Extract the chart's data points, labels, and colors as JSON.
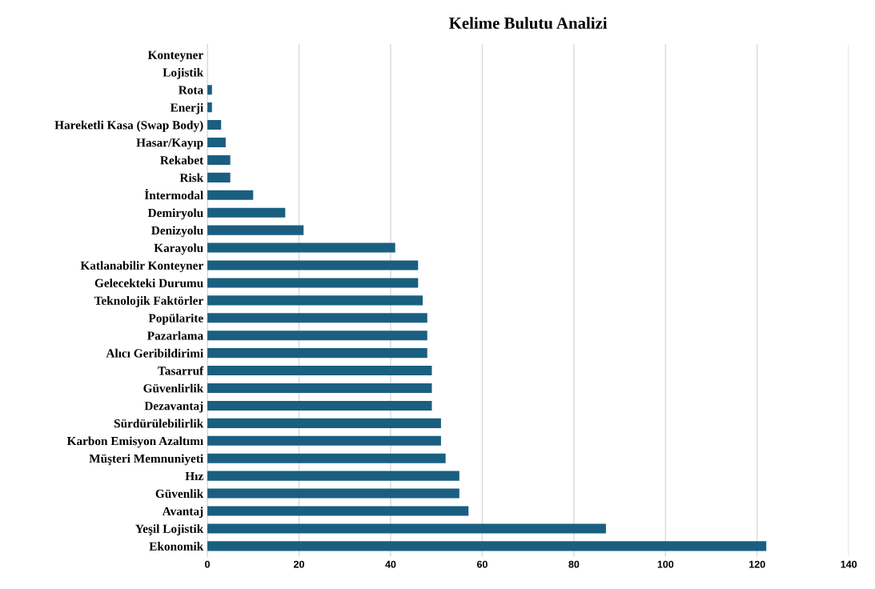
{
  "chart_data": {
    "type": "bar",
    "orientation": "horizontal",
    "title": "Kelime Bulutu Analizi",
    "categories": [
      "Konteyner",
      "Lojistik",
      "Rota",
      "Enerji",
      "Hareketli Kasa (Swap Body)",
      "Hasar/Kayıp",
      "Rekabet",
      "Risk",
      "İntermodal",
      "Demiryolu",
      "Denizyolu",
      "Karayolu",
      "Katlanabilir Konteyner",
      "Gelecekteki Durumu",
      "Teknolojik Faktörler",
      "Popülarite",
      "Pazarlama",
      "Alıcı Geribildirimi",
      "Tasarruf",
      "Güvenlirlik",
      "Dezavantaj",
      "Sürdürülebilirlik",
      "Karbon Emisyon Azaltımı",
      "Müşteri Memnuniyeti",
      "Hız",
      "Güvenlik",
      "Avantaj",
      "Yeşil Lojistik",
      "Ekonomik"
    ],
    "values": [
      0,
      0,
      1,
      1,
      3,
      4,
      5,
      5,
      10,
      17,
      21,
      41,
      46,
      46,
      47,
      48,
      48,
      48,
      49,
      49,
      49,
      51,
      51,
      52,
      55,
      55,
      57,
      87,
      122
    ],
    "color": "#1a5f80",
    "xlim": [
      0,
      140
    ],
    "xticks": [
      0,
      20,
      40,
      60,
      80,
      100,
      120,
      140
    ],
    "grid": "x"
  }
}
